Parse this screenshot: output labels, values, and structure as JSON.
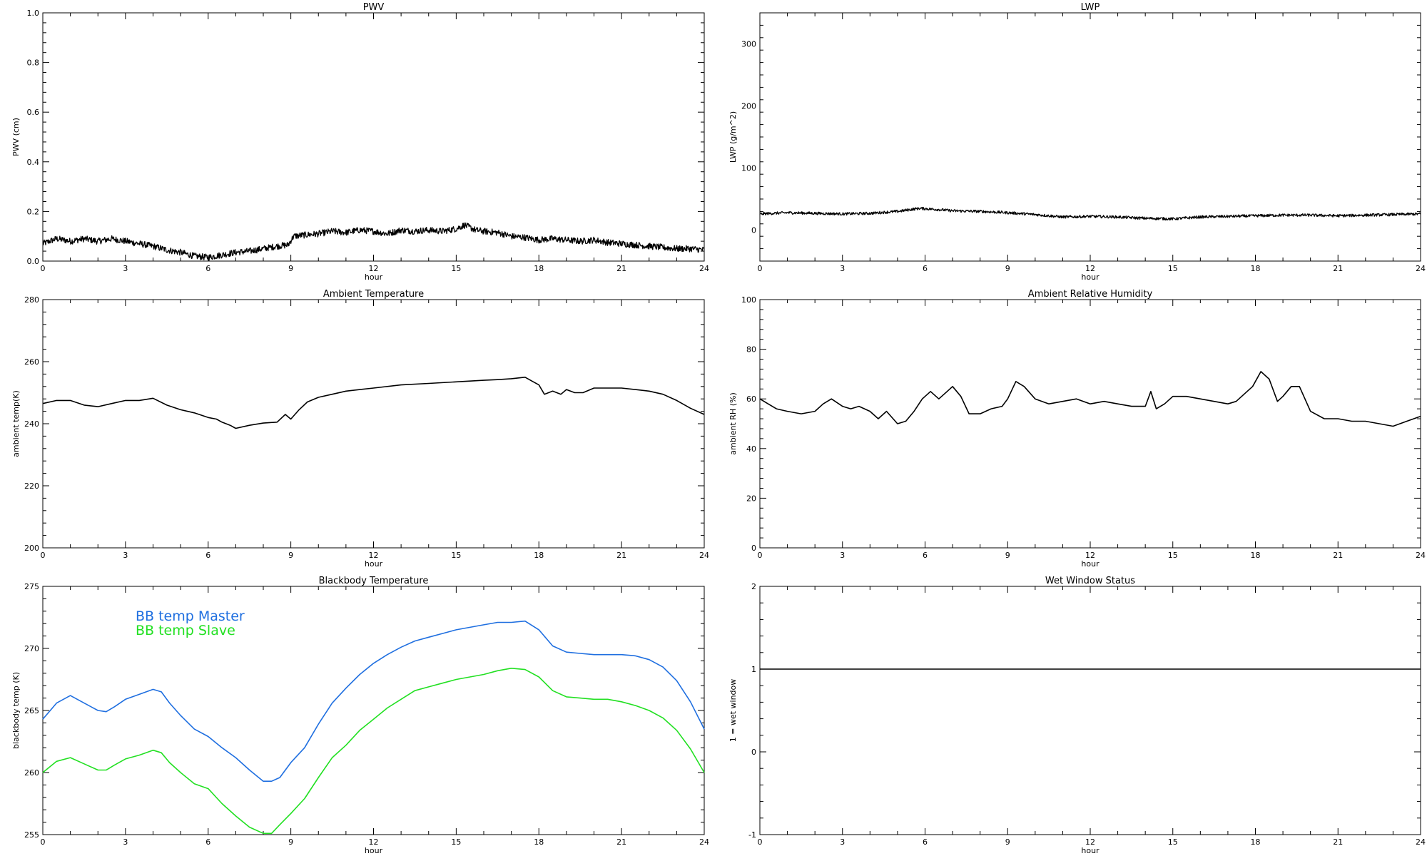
{
  "chart_data": [
    {
      "type": "line",
      "title": "PWV",
      "xlabel": "hour",
      "ylabel": "PWV (cm)",
      "xlim": [
        0,
        24
      ],
      "ylim": [
        0,
        1
      ],
      "xticks": [
        0,
        3,
        6,
        9,
        12,
        15,
        18,
        21,
        24
      ],
      "yticks": [
        "0.0",
        "0.2",
        "0.4",
        "0.6",
        "0.8",
        "1.0"
      ],
      "noise": 0.013,
      "series": [
        {
          "color": "#000000",
          "x": [
            0,
            0.5,
            1,
            1.5,
            2,
            2.5,
            3,
            3.5,
            4,
            4.5,
            5,
            5.5,
            6,
            6.5,
            7,
            7.5,
            8,
            8.5,
            8.9,
            9.1,
            9.5,
            10,
            10.5,
            11,
            11.5,
            12,
            12.5,
            13,
            13.5,
            14,
            14.5,
            15,
            15.3,
            15.7,
            16,
            16.5,
            17,
            17.5,
            18,
            18.5,
            19,
            19.5,
            20,
            20.5,
            21,
            21.5,
            22,
            22.5,
            23,
            23.5,
            24
          ],
          "values": [
            0.07,
            0.09,
            0.08,
            0.09,
            0.08,
            0.09,
            0.08,
            0.07,
            0.06,
            0.045,
            0.035,
            0.02,
            0.015,
            0.025,
            0.035,
            0.04,
            0.05,
            0.06,
            0.065,
            0.1,
            0.105,
            0.11,
            0.12,
            0.115,
            0.125,
            0.12,
            0.11,
            0.125,
            0.12,
            0.125,
            0.12,
            0.13,
            0.145,
            0.125,
            0.12,
            0.115,
            0.1,
            0.095,
            0.085,
            0.09,
            0.085,
            0.08,
            0.085,
            0.075,
            0.07,
            0.065,
            0.06,
            0.055,
            0.05,
            0.05,
            0.045
          ]
        }
      ]
    },
    {
      "type": "line",
      "title": "LWP",
      "xlabel": "hour",
      "ylabel": "LWP (g/m^2)",
      "xlim": [
        0,
        24
      ],
      "ylim": [
        -50,
        350
      ],
      "xticks": [
        0,
        3,
        6,
        9,
        12,
        15,
        18,
        21,
        24
      ],
      "yticks": [
        "0",
        "100",
        "200",
        "300"
      ],
      "noise": 2.2,
      "series": [
        {
          "color": "#000000",
          "x": [
            0,
            1,
            2,
            3,
            4,
            5,
            5.8,
            6.5,
            7,
            8,
            9,
            10,
            11,
            12,
            13,
            14,
            15,
            16,
            17,
            18,
            19,
            20,
            21,
            22,
            23,
            24
          ],
          "values": [
            26,
            28,
            27,
            26,
            27,
            30,
            35,
            33,
            31,
            30,
            28,
            25,
            21,
            22,
            21,
            19,
            18,
            21,
            22,
            23,
            24,
            24,
            23,
            24,
            25,
            26
          ]
        }
      ]
    },
    {
      "type": "line",
      "title": "Ambient Temperature",
      "xlabel": "hour",
      "ylabel": "ambient temp(K)",
      "xlim": [
        0,
        24
      ],
      "ylim": [
        200,
        280
      ],
      "xticks": [
        0,
        3,
        6,
        9,
        12,
        15,
        18,
        21,
        24
      ],
      "yticks": [
        "200",
        "220",
        "240",
        "260",
        "280"
      ],
      "noise": 0,
      "series": [
        {
          "color": "#000000",
          "x": [
            0,
            0.5,
            1,
            1.5,
            2,
            2.5,
            3,
            3.5,
            4,
            4.5,
            5,
            5.5,
            6,
            6.3,
            6.5,
            6.8,
            7,
            7.5,
            8,
            8.5,
            8.8,
            9,
            9.3,
            9.6,
            10,
            10.5,
            11,
            12,
            13,
            14,
            15,
            16,
            16.5,
            17,
            17.5,
            17.8,
            18,
            18.2,
            18.5,
            18.8,
            19,
            19.3,
            19.6,
            20,
            20.5,
            21,
            21.5,
            22,
            22.5,
            23,
            23.5,
            24
          ],
          "values": [
            246.5,
            247.5,
            247.5,
            246,
            245.5,
            246.5,
            247.5,
            247.5,
            248.2,
            246,
            244.5,
            243.5,
            242,
            241.5,
            240.5,
            239.5,
            238.5,
            239.5,
            240.2,
            240.5,
            243,
            241.5,
            244.5,
            247,
            248.5,
            249.5,
            250.5,
            251.5,
            252.5,
            253,
            253.5,
            254,
            254.2,
            254.5,
            255,
            253.5,
            252.5,
            249.5,
            250.5,
            249.5,
            251,
            250,
            250,
            251.5,
            251.5,
            251.5,
            251,
            250.5,
            249.5,
            247.5,
            245,
            243
          ]
        }
      ]
    },
    {
      "type": "line",
      "title": "Ambient Relative Humidity",
      "xlabel": "hour",
      "ylabel": "ambient RH (%)",
      "xlim": [
        0,
        24
      ],
      "ylim": [
        0,
        100
      ],
      "xticks": [
        0,
        3,
        6,
        9,
        12,
        15,
        18,
        21,
        24
      ],
      "yticks": [
        "0",
        "20",
        "40",
        "60",
        "80",
        "100"
      ],
      "noise": 0,
      "series": [
        {
          "color": "#000000",
          "x": [
            0,
            0.3,
            0.6,
            1,
            1.5,
            2,
            2.3,
            2.6,
            3,
            3.3,
            3.6,
            4,
            4.3,
            4.6,
            5,
            5.3,
            5.6,
            5.9,
            6.2,
            6.5,
            6.8,
            7,
            7.3,
            7.6,
            8,
            8.4,
            8.8,
            9,
            9.3,
            9.6,
            10,
            10.5,
            11,
            11.5,
            12,
            12.5,
            13,
            13.5,
            14,
            14.2,
            14.4,
            14.7,
            15,
            15.5,
            16,
            16.5,
            17,
            17.3,
            17.6,
            17.9,
            18.2,
            18.5,
            18.8,
            19,
            19.3,
            19.6,
            20,
            20.5,
            21,
            21.5,
            22,
            22.5,
            23,
            23.5,
            24
          ],
          "values": [
            60,
            58,
            56,
            55,
            54,
            55,
            58,
            60,
            57,
            56,
            57,
            55,
            52,
            55,
            50,
            51,
            55,
            60,
            63,
            60,
            63,
            65,
            61,
            54,
            54,
            56,
            57,
            60,
            67,
            65,
            60,
            58,
            59,
            60,
            58,
            59,
            58,
            57,
            57,
            63,
            56,
            58,
            61,
            61,
            60,
            59,
            58,
            59,
            62,
            65,
            71,
            68,
            59,
            61,
            65,
            65,
            55,
            52,
            52,
            51,
            51,
            50,
            49,
            51,
            53
          ]
        }
      ]
    },
    {
      "type": "line",
      "title": "Blackbody Temperature",
      "xlabel": "hour",
      "ylabel": "blackbody temp (K)",
      "xlim": [
        0,
        24
      ],
      "ylim": [
        255,
        275
      ],
      "xticks": [
        0,
        3,
        6,
        9,
        12,
        15,
        18,
        21,
        24
      ],
      "yticks": [
        "255",
        "260",
        "265",
        "270",
        "275"
      ],
      "noise": 0,
      "legend": [
        "BB temp Master",
        "BB temp Slave"
      ],
      "series": [
        {
          "name": "BB temp Master",
          "color": "#1f6fe0",
          "x": [
            0,
            0.5,
            1,
            1.5,
            2,
            2.3,
            2.6,
            3,
            3.5,
            4,
            4.3,
            4.6,
            5,
            5.5,
            6,
            6.5,
            7,
            7.5,
            8,
            8.3,
            8.6,
            9,
            9.5,
            10,
            10.5,
            11,
            11.5,
            12,
            12.5,
            13,
            13.5,
            14,
            14.5,
            15,
            15.5,
            16,
            16.5,
            17,
            17.5,
            18,
            18.5,
            19,
            19.5,
            20,
            20.5,
            21,
            21.5,
            22,
            22.5,
            23,
            23.5,
            24
          ],
          "values": [
            264.3,
            265.6,
            266.2,
            265.6,
            265,
            264.9,
            265.3,
            265.9,
            266.3,
            266.7,
            266.5,
            265.6,
            264.6,
            263.5,
            262.9,
            262,
            261.2,
            260.2,
            259.3,
            259.3,
            259.6,
            260.8,
            262,
            263.9,
            265.6,
            266.8,
            267.9,
            268.8,
            269.5,
            270.1,
            270.6,
            270.9,
            271.2,
            271.5,
            271.7,
            271.9,
            272.1,
            272.1,
            272.2,
            271.5,
            270.2,
            269.7,
            269.6,
            269.5,
            269.5,
            269.5,
            269.4,
            269.1,
            268.5,
            267.4,
            265.7,
            263.5
          ]
        },
        {
          "name": "BB temp Slave",
          "color": "#22e022",
          "x": [
            0,
            0.5,
            1,
            1.5,
            2,
            2.3,
            2.6,
            3,
            3.5,
            4,
            4.3,
            4.6,
            5,
            5.5,
            6,
            6.5,
            7,
            7.5,
            8,
            8.3,
            8.6,
            9,
            9.5,
            10,
            10.5,
            11,
            11.5,
            12,
            12.5,
            13,
            13.5,
            14,
            14.5,
            15,
            15.5,
            16,
            16.5,
            17,
            17.5,
            18,
            18.5,
            19,
            19.5,
            20,
            20.5,
            21,
            21.5,
            22,
            22.5,
            23,
            23.5,
            24
          ],
          "values": [
            260,
            260.9,
            261.2,
            260.7,
            260.2,
            260.2,
            260.6,
            261.1,
            261.4,
            261.8,
            261.6,
            260.8,
            260,
            259.1,
            258.7,
            257.5,
            256.5,
            255.6,
            255.1,
            255.1,
            255.8,
            256.7,
            257.9,
            259.6,
            261.2,
            262.2,
            263.4,
            264.3,
            265.2,
            265.9,
            266.6,
            266.9,
            267.2,
            267.5,
            267.7,
            267.9,
            268.2,
            268.4,
            268.3,
            267.7,
            266.6,
            266.1,
            266,
            265.9,
            265.9,
            265.7,
            265.4,
            265,
            264.4,
            263.4,
            261.9,
            260
          ]
        }
      ]
    },
    {
      "type": "line",
      "title": "Wet Window Status",
      "xlabel": "hour",
      "ylabel": "1 = wet window",
      "xlim": [
        0,
        24
      ],
      "ylim": [
        -1,
        2
      ],
      "xticks": [
        0,
        3,
        6,
        9,
        12,
        15,
        18,
        21,
        24
      ],
      "yticks": [
        "-1",
        "0",
        "1",
        "2"
      ],
      "noise": 0,
      "series": [
        {
          "color": "#000000",
          "x": [
            0,
            24
          ],
          "values": [
            1,
            1
          ]
        }
      ]
    }
  ]
}
